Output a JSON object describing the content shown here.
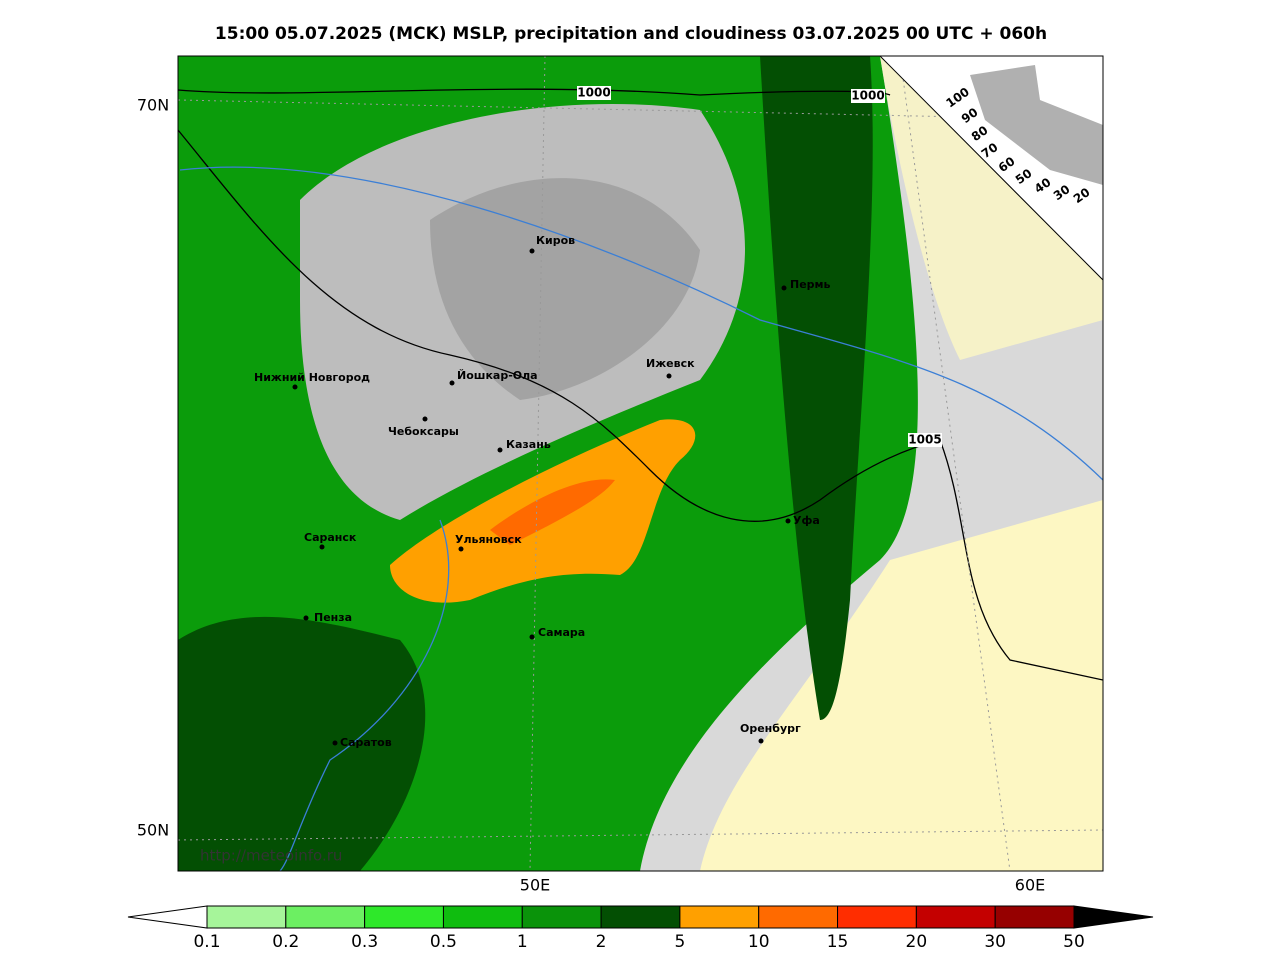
{
  "title": "15:00 05.07.2025 (MCK) MSLP, precipitation and cloudiness 03.07.2025 00 UTC + 060h",
  "latitudes": [
    "70N",
    "50N"
  ],
  "longitudes": [
    "50E",
    "60E"
  ],
  "watermark": "http://meteoinfo.ru",
  "cities": [
    "Киров",
    "Пермь",
    "Нижний Новгород",
    "Йошкар-Ола",
    "Ижевск",
    "Чебоксары",
    "Казань",
    "Уфа",
    "Саранск",
    "Ульяновск",
    "Пенза",
    "Самара",
    "Оренбург",
    "Саратов"
  ],
  "isobars": [
    1000,
    1000,
    1005
  ],
  "cloudiness_scale": [
    100,
    90,
    80,
    70,
    60,
    50,
    40,
    30,
    20
  ],
  "colorbar": {
    "ticks": [
      0.1,
      0.2,
      0.3,
      0.5,
      1,
      2,
      5,
      10,
      15,
      20,
      30,
      50
    ],
    "colors": [
      "#a6f59a",
      "#6cef62",
      "#2ee82a",
      "#0fbd0f",
      "#0a930a",
      "#034f03",
      "#ffa000",
      "#ff6a00",
      "#ff2d00",
      "#c40000",
      "#960000"
    ]
  }
}
